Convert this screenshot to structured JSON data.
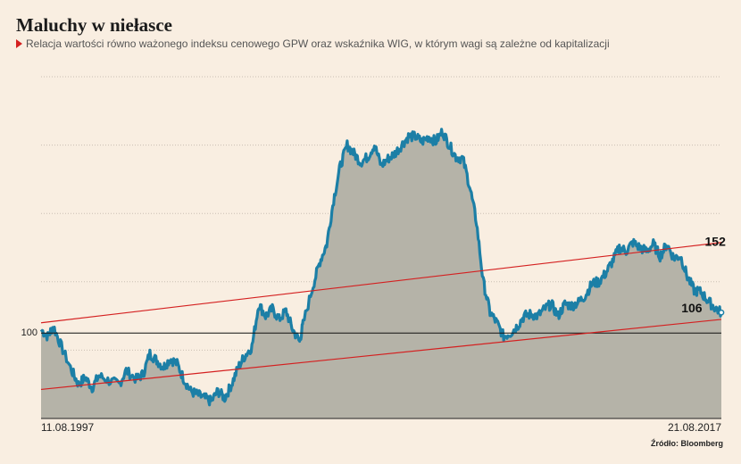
{
  "header": {
    "title": "Maluchy w niełasce",
    "subtitle": "Relacja wartości równo ważonego indeksu cenowego GPW oraz wskaźnika WIG, w którym wagi są zależne od kapitalizacji"
  },
  "source": "Źródło: Bloomberg",
  "chart_data": {
    "type": "area",
    "title": "Maluchy w niełasce",
    "x_labels": {
      "start": "11.08.1997",
      "end": "21.08.2017"
    },
    "y_range": [
      50,
      250
    ],
    "baseline": {
      "value": 100,
      "label": "100"
    },
    "annotations": [
      {
        "label": "152",
        "x": 0.96,
        "y": 152
      },
      {
        "label": "106",
        "x": 0.985,
        "y": 106
      }
    ],
    "trend_channel": {
      "upper": {
        "from": [
          0,
          106
        ],
        "to": [
          1,
          153
        ]
      },
      "lower": {
        "from": [
          0,
          67
        ],
        "to": [
          1,
          108
        ]
      }
    },
    "colors": {
      "line": "#1c7fa6",
      "fill": "#b5b3a8",
      "trend": "#d42020",
      "grid": "#c9bfb3",
      "background": "#f9eee1"
    },
    "series": [
      {
        "x": [
          0,
          0.01,
          0.018,
          0.03,
          0.045,
          0.055,
          0.065,
          0.075,
          0.085,
          0.1,
          0.115,
          0.125,
          0.14,
          0.15,
          0.16,
          0.17,
          0.18,
          0.19,
          0.2,
          0.21,
          0.22,
          0.23,
          0.24,
          0.25,
          0.26,
          0.27,
          0.28,
          0.29,
          0.3,
          0.31,
          0.32,
          0.33,
          0.34,
          0.35,
          0.36,
          0.37,
          0.38,
          0.385,
          0.4,
          0.41,
          0.42,
          0.43,
          0.44,
          0.45,
          0.46,
          0.47,
          0.48,
          0.49,
          0.5,
          0.51,
          0.52,
          0.53,
          0.54,
          0.55,
          0.56,
          0.57,
          0.58,
          0.59,
          0.6,
          0.61,
          0.62,
          0.63,
          0.64,
          0.65,
          0.66,
          0.67,
          0.68,
          0.69,
          0.7,
          0.71,
          0.72,
          0.73,
          0.74,
          0.75,
          0.76,
          0.77,
          0.78,
          0.79,
          0.8,
          0.81,
          0.82,
          0.83,
          0.84,
          0.85,
          0.86,
          0.87,
          0.88,
          0.89,
          0.9,
          0.91,
          0.92,
          0.93,
          0.94,
          0.95,
          0.96,
          0.97,
          0.98,
          0.99,
          1
        ],
        "y": [
          102,
          98,
          104,
          92,
          78,
          70,
          74,
          68,
          75,
          72,
          70,
          78,
          73,
          76,
          88,
          84,
          80,
          85,
          82,
          73,
          66,
          64,
          62,
          60,
          66,
          62,
          70,
          80,
          87,
          92,
          117,
          110,
          114,
          108,
          113,
          102,
          95,
          105,
          128,
          142,
          152,
          178,
          198,
          210,
          205,
          200,
          203,
          210,
          198,
          202,
          205,
          210,
          215,
          215,
          212,
          215,
          212,
          218,
          210,
          203,
          202,
          186,
          165,
          130,
          112,
          106,
          98,
          100,
          104,
          110,
          111,
          110,
          114,
          117,
          110,
          117,
          116,
          118,
          122,
          129,
          130,
          135,
          142,
          150,
          148,
          153,
          150,
          148,
          152,
          145,
          152,
          144,
          145,
          133,
          125,
          124,
          119,
          115,
          112
        ]
      }
    ]
  }
}
